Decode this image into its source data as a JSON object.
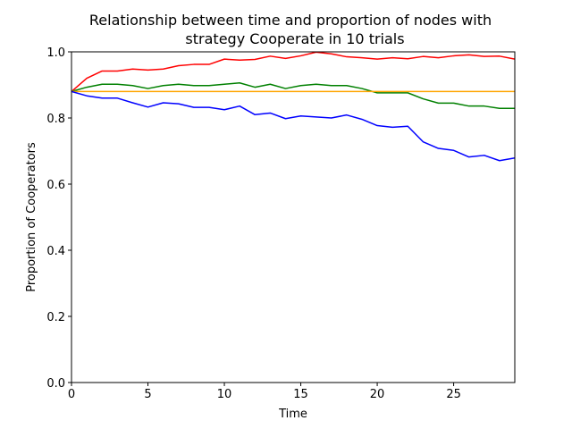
{
  "chart_data": {
    "type": "line",
    "title_lines": [
      "Relationship between time and proportion of nodes with",
      "strategy Cooperate in 10 trials"
    ],
    "xlabel": "Time",
    "ylabel": "Proportion of Cooperators",
    "xlim": [
      0,
      29
    ],
    "ylim": [
      0,
      1.0
    ],
    "x_ticks": [
      0,
      5,
      10,
      15,
      20,
      25
    ],
    "y_ticks": [
      0.0,
      0.2,
      0.4,
      0.6,
      0.8,
      1.0
    ],
    "x_tick_labels": [
      "0",
      "5",
      "10",
      "15",
      "20",
      "25"
    ],
    "y_tick_labels": [
      "0.0",
      "0.2",
      "0.4",
      "0.6",
      "0.8",
      "1.0"
    ],
    "grid": false,
    "x": [
      0,
      1,
      2,
      3,
      4,
      5,
      6,
      7,
      8,
      9,
      10,
      11,
      12,
      13,
      14,
      15,
      16,
      17,
      18,
      19,
      20,
      21,
      22,
      23,
      24,
      25,
      26,
      27,
      28,
      29
    ],
    "series": [
      {
        "color": "#ff0000",
        "values": [
          0.88,
          0.92,
          0.942,
          0.942,
          0.948,
          0.945,
          0.948,
          0.958,
          0.962,
          0.962,
          0.978,
          0.975,
          0.977,
          0.987,
          0.98,
          0.988,
          0.999,
          0.994,
          0.985,
          0.982,
          0.978,
          0.982,
          0.979,
          0.986,
          0.982,
          0.988,
          0.991,
          0.986,
          0.987,
          0.978
        ]
      },
      {
        "color": "#008000",
        "values": [
          0.88,
          0.893,
          0.902,
          0.902,
          0.898,
          0.889,
          0.898,
          0.902,
          0.898,
          0.898,
          0.902,
          0.906,
          0.893,
          0.902,
          0.889,
          0.898,
          0.902,
          0.898,
          0.898,
          0.889,
          0.876,
          0.876,
          0.876,
          0.858,
          0.845,
          0.845,
          0.836,
          0.836,
          0.829,
          0.829
        ]
      },
      {
        "color": "#ffa500",
        "values": [
          0.88,
          0.88,
          0.88,
          0.88,
          0.88,
          0.88,
          0.88,
          0.88,
          0.88,
          0.88,
          0.88,
          0.88,
          0.88,
          0.88,
          0.88,
          0.88,
          0.88,
          0.88,
          0.88,
          0.88,
          0.88,
          0.88,
          0.88,
          0.88,
          0.88,
          0.88,
          0.88,
          0.88,
          0.88,
          0.88
        ]
      },
      {
        "color": "#0000ff",
        "values": [
          0.88,
          0.867,
          0.86,
          0.86,
          0.846,
          0.833,
          0.846,
          0.843,
          0.832,
          0.832,
          0.825,
          0.836,
          0.81,
          0.815,
          0.798,
          0.806,
          0.803,
          0.8,
          0.809,
          0.796,
          0.777,
          0.772,
          0.775,
          0.728,
          0.708,
          0.702,
          0.682,
          0.687,
          0.671,
          0.679
        ]
      }
    ]
  }
}
